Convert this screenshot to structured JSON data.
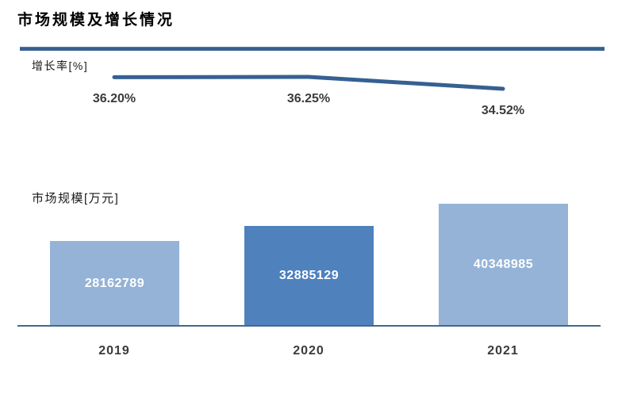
{
  "title": "市场规模及增长情况",
  "colors": {
    "accent_divider": "#366092",
    "line_color": "#366092",
    "bar_light": "#95b3d7",
    "bar_dark": "#4f81bd",
    "axis_line": "#44678f",
    "data_label_text": "#3b3b3b",
    "bar_value_text": "#ffffff"
  },
  "chart_data": [
    {
      "type": "line",
      "title": "增长率[%]",
      "x": [
        "2019",
        "2020",
        "2021"
      ],
      "values": [
        36.2,
        36.25,
        34.52
      ],
      "data_labels": [
        "36.20%",
        "36.25%",
        "34.52%"
      ],
      "unit": "%",
      "grid": false,
      "legend": "none",
      "line_color": "#366092"
    },
    {
      "type": "bar",
      "title": "市场规模[万元]",
      "categories": [
        "2019",
        "2020",
        "2021"
      ],
      "values": [
        28162789,
        32885129,
        40348985
      ],
      "data_labels": [
        "28162789",
        "32885129",
        "40348985"
      ],
      "unit": "万元",
      "ylim": [
        0,
        40348985
      ],
      "grid": false,
      "legend": "none",
      "bar_colors": [
        "#95b3d7",
        "#4f81bd",
        "#95b3d7"
      ]
    }
  ]
}
